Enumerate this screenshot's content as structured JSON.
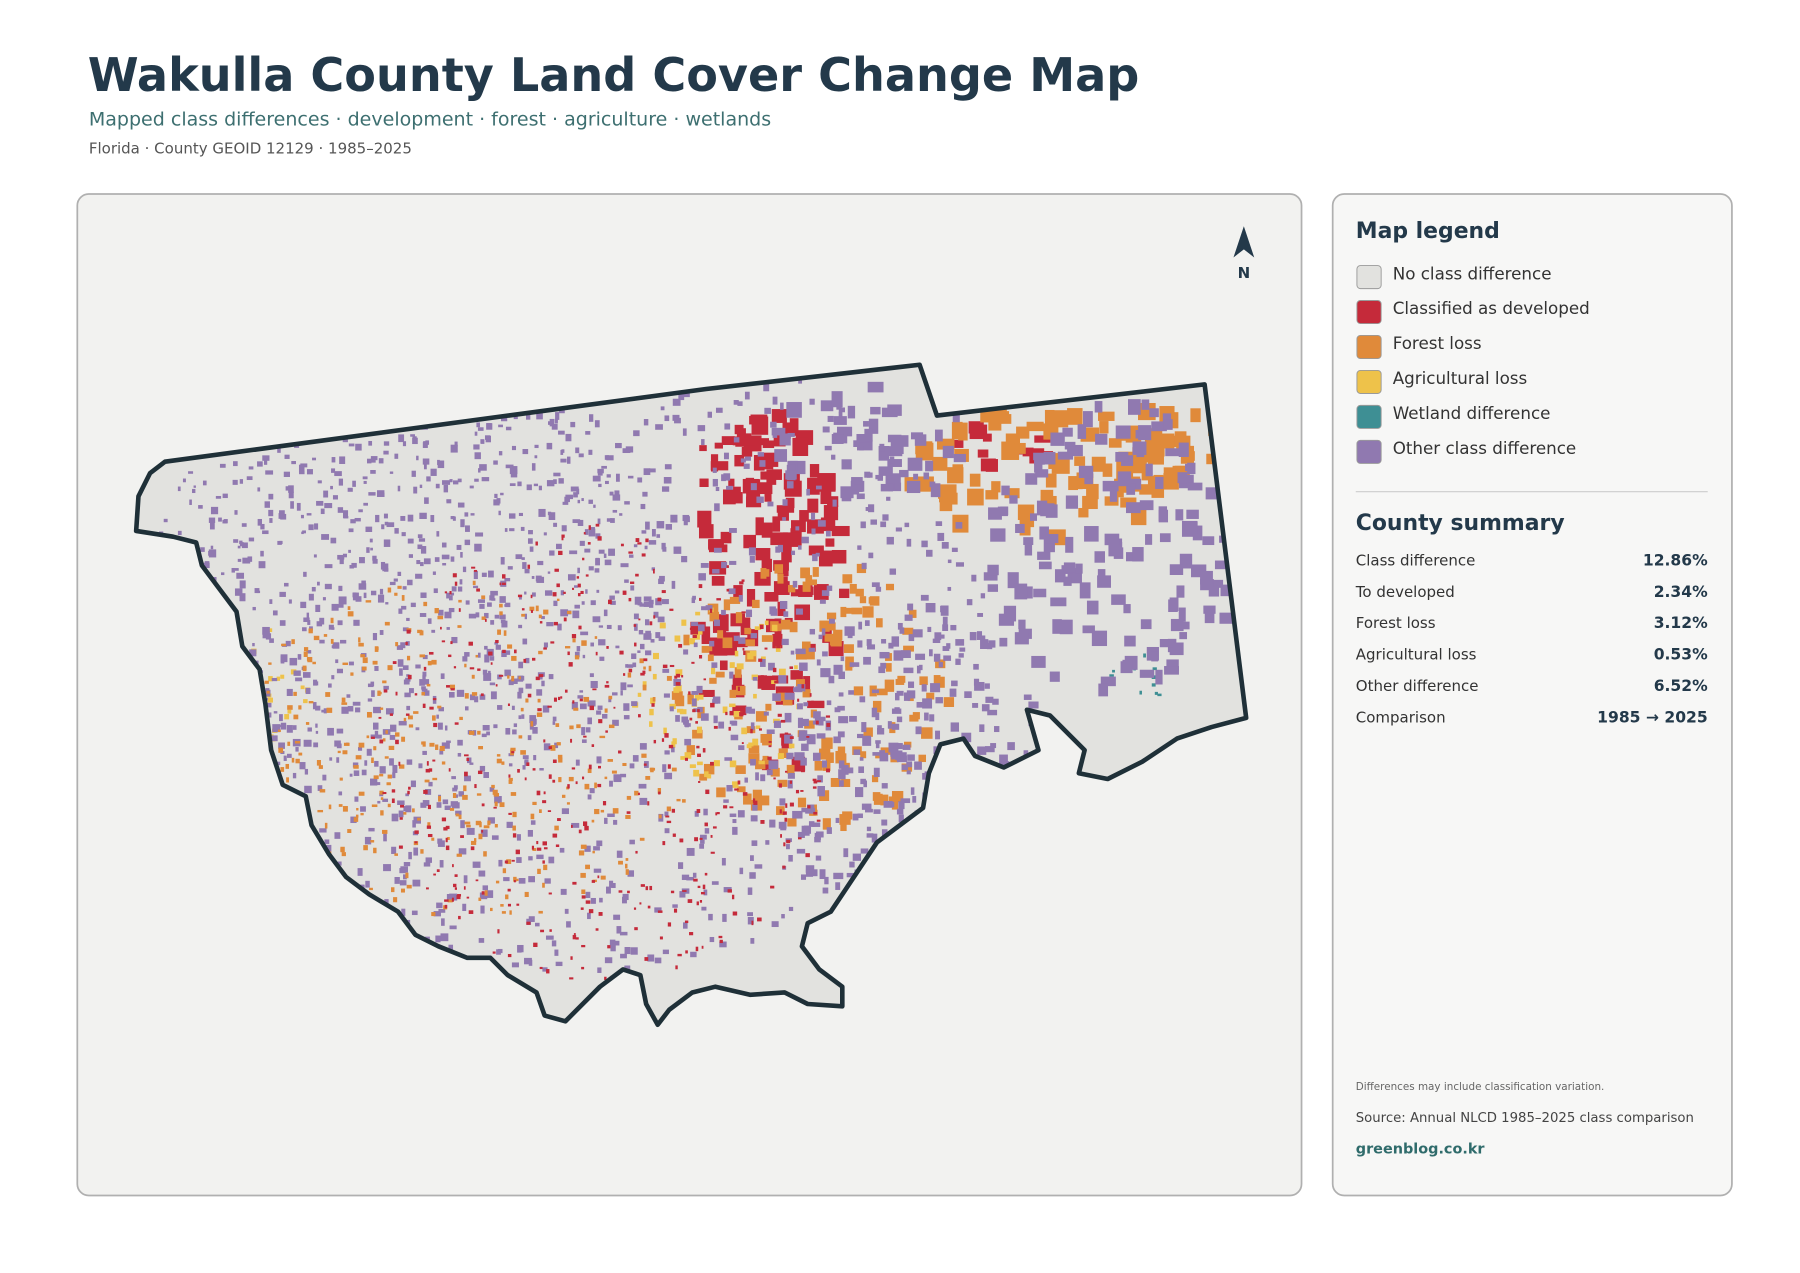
{
  "header": {
    "title": "Wakulla County Land Cover Change Map",
    "subtitle": "Mapped class differences · development · forest · agriculture · wetlands",
    "meta": "Florida · County GEOID 12129 · 1985–2025"
  },
  "map": {
    "north_label": "N"
  },
  "legend": {
    "title": "Map legend",
    "items": [
      {
        "label": "No class difference",
        "color": "#e2e2df"
      },
      {
        "label": "Classified as developed",
        "color": "#c52a3a"
      },
      {
        "label": "Forest loss",
        "color": "#e08a3a"
      },
      {
        "label": "Agricultural loss",
        "color": "#eec24a"
      },
      {
        "label": "Wetland difference",
        "color": "#3e8f94"
      },
      {
        "label": "Other class difference",
        "color": "#9079b0"
      }
    ]
  },
  "summary": {
    "title": "County summary",
    "rows": [
      [
        "Class difference",
        "12.86%"
      ],
      [
        "To developed",
        "2.34%"
      ],
      [
        "Forest loss",
        "3.12%"
      ],
      [
        "Agricultural loss",
        "0.53%"
      ],
      [
        "Other difference",
        "6.52%"
      ],
      [
        "Comparison",
        "1985 → 2025"
      ]
    ]
  },
  "footer": {
    "note": "Differences may include classification variation.",
    "source": "Source: Annual NLCD 1985–2025 class comparison",
    "site": "greenblog.co.kr"
  }
}
